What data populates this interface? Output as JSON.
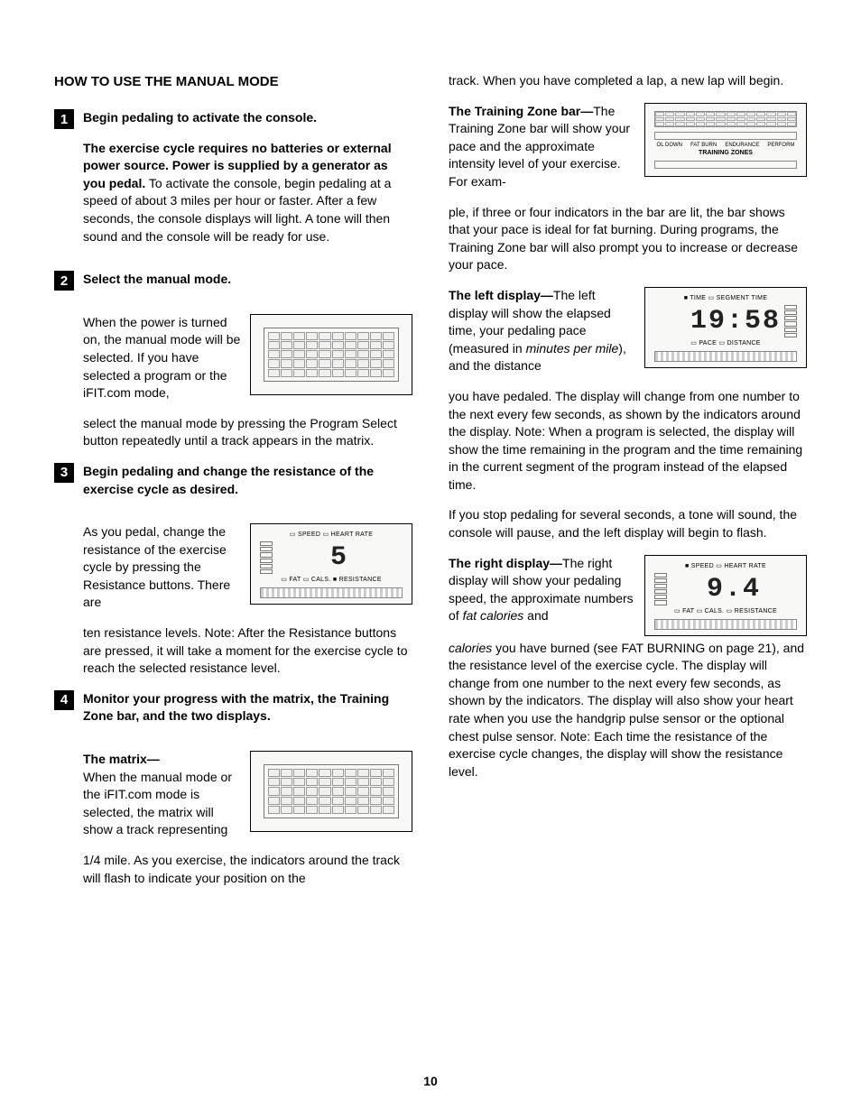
{
  "page_number": "10",
  "section_title": "HOW TO USE THE MANUAL MODE",
  "steps": {
    "1": {
      "num": "1",
      "title": "Begin pedaling to activate the console.",
      "p1_bold": "The exercise cycle requires no batteries or external power source. Power is supplied by a generator as you pedal.",
      "p1_rest": " To activate the console, begin pedaling at a speed of about 3 miles per hour or faster. After a few seconds, the console displays will light. A tone will then sound and the console will be ready for use."
    },
    "2": {
      "num": "2",
      "title": "Select the manual mode.",
      "p1": "When the power is turned on, the manual mode will be selected. If you have selected a program or the iFIT.com mode,",
      "p2": "select the manual mode by pressing the Program Select button repeatedly until a track appears in the matrix."
    },
    "3": {
      "num": "3",
      "title": "Begin pedaling and change the resistance of the exercise cycle as desired.",
      "p1": "As you pedal, change the resistance of the exercise cycle by pressing the Resistance buttons. There are",
      "p2": "ten resistance levels. Note: After the Resistance buttons are pressed, it will take a moment for the exercise cycle to reach the selected resistance level.",
      "display_header": "▭ SPEED ▭ HEART RATE",
      "display_value": "5",
      "display_footer": "▭ FAT ▭ CALS. ■ RESISTANCE"
    },
    "4": {
      "num": "4",
      "title": "Monitor your progress with the matrix, the Training Zone bar, and the two displays.",
      "matrix_heading": "The matrix—",
      "matrix_p1": "When the manual mode or the iFIT.com mode is selected, the matrix will show a track representing",
      "matrix_p2": "1/4 mile. As you exercise, the indicators around the track will flash to indicate your position on the"
    }
  },
  "right": {
    "continuation_top": "track. When you have completed a lap, a new lap will begin.",
    "tz": {
      "heading": "The Training Zone bar—",
      "p1": "The Training Zone bar will show your pace and the approximate intensity level of your exercise. For exam-",
      "p2": "ple, if three or four indicators in the bar are lit, the bar shows that your pace is ideal for fat burning. During programs, the Training Zone bar will also prompt you to increase or decrease your pace.",
      "labels": [
        "OL DOWN",
        "FAT BURN",
        "ENDURANCE",
        "PERFORM"
      ],
      "title": "TRAINING ZONES"
    },
    "left_display": {
      "heading": "The left display—",
      "p1": "The left display will show the elapsed time, your pedaling pace (measured in ",
      "p1_italic": "minutes per mile",
      "p1_after": "), and the distance",
      "p2": "you have pedaled. The display will change from one number to the next every few seconds, as shown by the indicators around the display. Note: When a program is selected, the display will show the time remaining in the program and the time remaining in the current segment of the program instead of the elapsed time.",
      "header": "■ TIME ▭ SEGMENT TIME",
      "value": "19:58",
      "footer": "▭ PACE ▭ DISTANCE"
    },
    "pause_p": "If you stop pedaling for several seconds, a tone will sound, the console will pause, and the left display will begin to flash.",
    "right_display": {
      "heading": "The right display—",
      "p1": "The right display will show your pedaling speed, the approximate numbers of ",
      "p1_italic": "fat calories",
      "p1_after": " and",
      "p2_italic": "calories",
      "p2": " you have burned (see FAT BURNING on page 21), and the resistance level of the exercise cycle. The display will change from one number to the next every few seconds, as shown by the indicators. The display will also show your heart rate when you use the handgrip pulse sensor or the optional chest pulse sensor. Note: Each time the resistance of the exercise cycle changes, the display will show the resistance level.",
      "header": "■ SPEED ▭ HEART RATE",
      "value": "9.4",
      "footer": "▭ FAT ▭ CALS. ▭ RESISTANCE"
    }
  },
  "colors": {
    "text": "#000000",
    "bg": "#ffffff",
    "box_bg": "#f8f8f6",
    "grid": "#999999"
  }
}
